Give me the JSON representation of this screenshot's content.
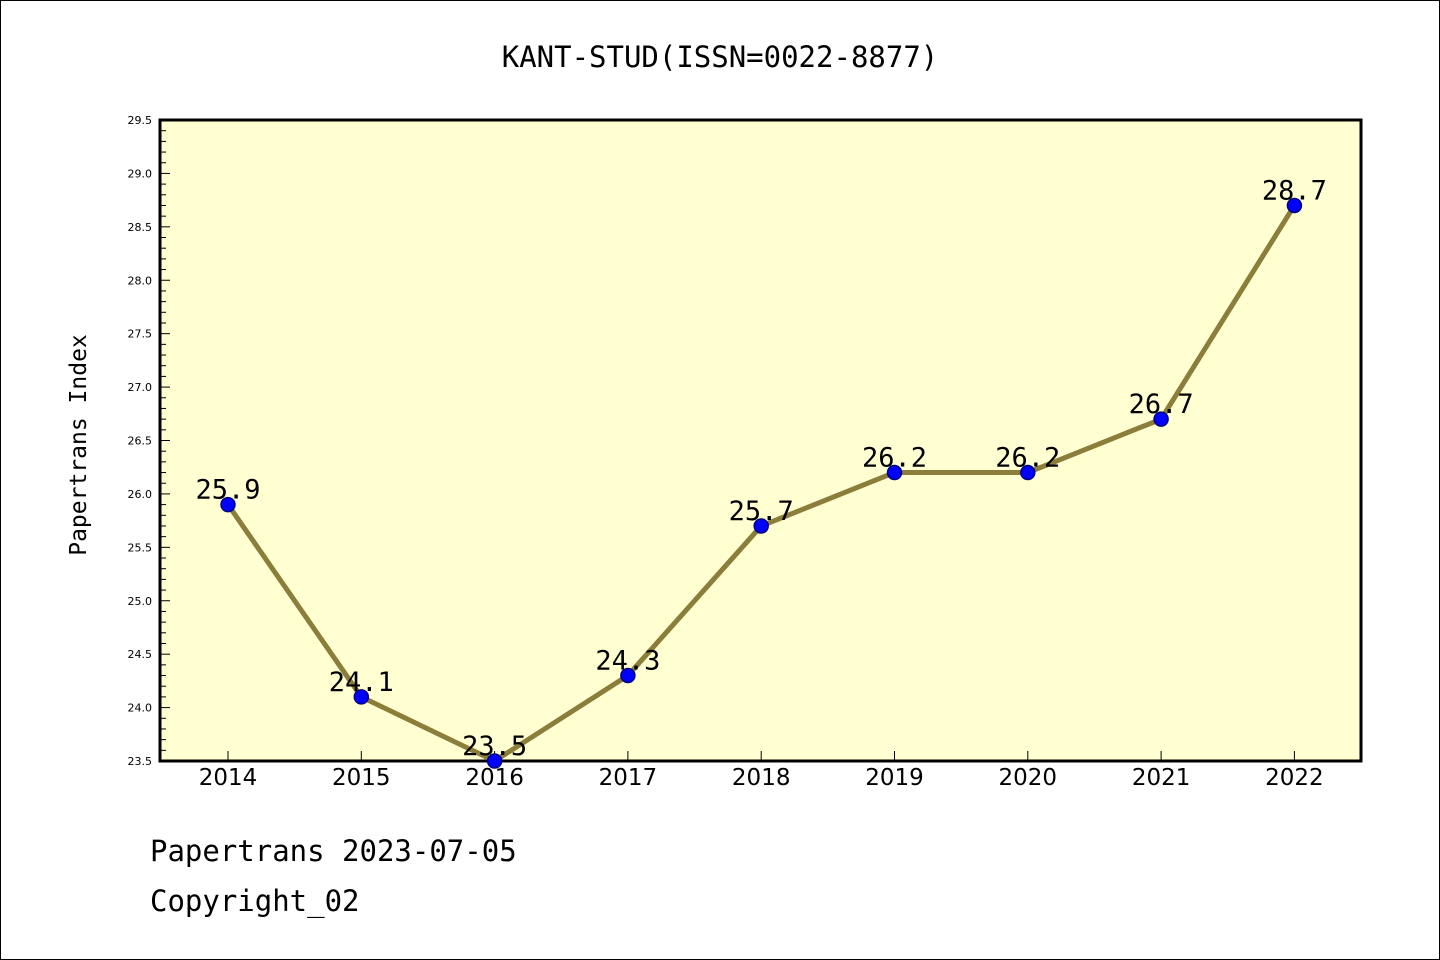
{
  "chart_data": {
    "type": "line",
    "title": "KANT-STUD(ISSN=0022-8877)",
    "xlabel": "",
    "ylabel": "Papertrans Index",
    "categories": [
      "2014",
      "2015",
      "2016",
      "2017",
      "2018",
      "2019",
      "2020",
      "2021",
      "2022"
    ],
    "series": [
      {
        "values": [
          25.9,
          24.1,
          23.5,
          24.3,
          25.7,
          26.2,
          26.2,
          26.7,
          28.7
        ],
        "labels": [
          "25.9",
          "24.1",
          "23.5",
          "24.3",
          "25.7",
          "26.2",
          "26.2",
          "26.7",
          "28.7"
        ]
      }
    ],
    "ylim": [
      23.5,
      29.5
    ],
    "yticks": [
      "23.5",
      "24.0",
      "24.5",
      "25.0",
      "25.5",
      "26.0",
      "26.5",
      "27.0",
      "27.5",
      "28.0",
      "28.5",
      "29.0",
      "29.5"
    ],
    "grid": false,
    "legend": "none",
    "colors": {
      "plot_background": "#ffffd2",
      "line": "#8b7d3a",
      "marker": "#0000ff",
      "marker_edge": "#000080",
      "axes": "#000000"
    }
  },
  "footer": {
    "date_line": "Papertrans 2023-07-05",
    "copyright_line": "Copyright_02"
  }
}
